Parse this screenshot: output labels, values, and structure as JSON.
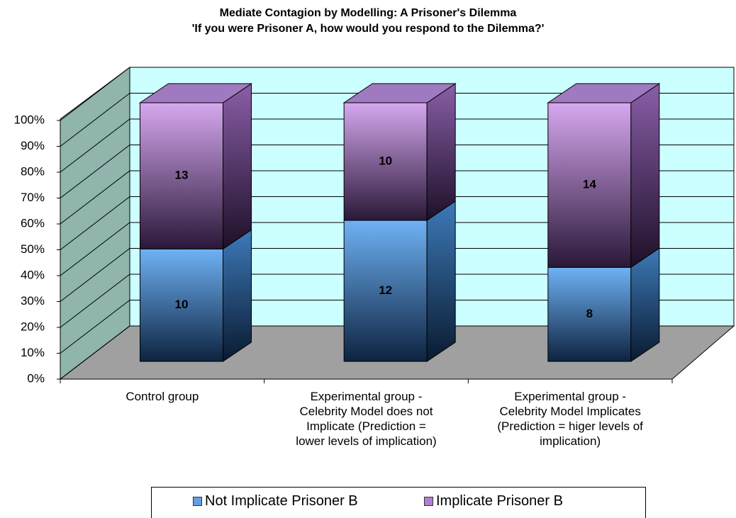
{
  "chart_data": {
    "type": "stacked_bar_3d_percent",
    "title": "Mediate Contagion by Modelling: A Prisoner's Dilemma",
    "subtitle": "'If you were Prisoner A, how would you respond to the Dilemma?'",
    "categories": [
      "Control group",
      "Experimental group -\nCelebrity Model does not\nImplicate (Prediction =\nlower levels of implication)",
      "Experimental group -\nCelebrity Model Implicates\n(Prediction = higer levels of\nimplication)"
    ],
    "series": [
      {
        "name": "Not Implicate Prisoner B",
        "color": "#5f9fe6",
        "values": [
          10,
          12,
          8
        ]
      },
      {
        "name": "Implicate Prisoner B",
        "color": "#b07fd0",
        "values": [
          13,
          10,
          14
        ]
      }
    ],
    "ylim": [
      0,
      100
    ],
    "yticks": [
      {
        "value": 0,
        "label": "0%"
      },
      {
        "value": 10,
        "label": "10%"
      },
      {
        "value": 20,
        "label": "20%"
      },
      {
        "value": 30,
        "label": "30%"
      },
      {
        "value": 40,
        "label": "40%"
      },
      {
        "value": 50,
        "label": "50%"
      },
      {
        "value": 60,
        "label": "60%"
      },
      {
        "value": 70,
        "label": "70%"
      },
      {
        "value": 80,
        "label": "80%"
      },
      {
        "value": 90,
        "label": "90%"
      },
      {
        "value": 100,
        "label": "100%"
      }
    ],
    "grid": true,
    "legend": "bottom"
  }
}
